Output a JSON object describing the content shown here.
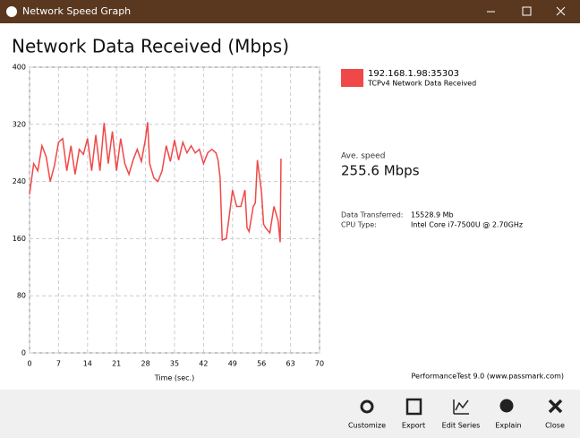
{
  "window": {
    "title": "Network Speed Graph"
  },
  "chart_data": {
    "type": "line",
    "title": "Network Data Received (Mbps)",
    "x_label": "Time (sec.)",
    "x": [
      0,
      1,
      2,
      3,
      4,
      5,
      6,
      7,
      8,
      9,
      10,
      11,
      12,
      13,
      14,
      15,
      16,
      17,
      18,
      19,
      20,
      21,
      22,
      23,
      24,
      25,
      26,
      27,
      28,
      28.5,
      29,
      30,
      31,
      32,
      33,
      34,
      35,
      36,
      37,
      38,
      39,
      40,
      41,
      42,
      43,
      44,
      45,
      45.5,
      46,
      46.5,
      47.5,
      48.5,
      49,
      50,
      51,
      52,
      52.5,
      53,
      54,
      54.5,
      55,
      56,
      56.5,
      57,
      58,
      59,
      60,
      60.5,
      60.7
    ],
    "series": [
      {
        "name": "192.168.1.98:35303",
        "color": "#f04848",
        "values": [
          222,
          265,
          255,
          290,
          275,
          240,
          262,
          295,
          300,
          255,
          290,
          250,
          285,
          278,
          300,
          255,
          305,
          255,
          322,
          265,
          310,
          255,
          300,
          265,
          250,
          270,
          285,
          268,
          300,
          323,
          265,
          245,
          240,
          255,
          290,
          268,
          298,
          270,
          295,
          280,
          290,
          280,
          285,
          265,
          280,
          285,
          280,
          270,
          245,
          158,
          160,
          205,
          228,
          205,
          205,
          228,
          175,
          170,
          205,
          210,
          270,
          225,
          180,
          175,
          168,
          205,
          185,
          155,
          272
        ]
      }
    ],
    "series_subtitle": "TCPv4 Network Data Received",
    "xlim": [
      0,
      70
    ],
    "xticks": [
      0,
      7,
      14,
      21,
      28,
      35,
      42,
      49,
      56,
      63,
      70
    ],
    "ylim": [
      0,
      400
    ],
    "yticks": [
      0,
      80,
      160,
      240,
      320,
      400
    ],
    "grid": true
  },
  "stats": {
    "avg_label": "Ave. speed",
    "avg_value": "255.6 Mbps",
    "rows": [
      [
        "Data Transferred:",
        "15528.9 Mb"
      ],
      [
        "CPU Type:",
        "Intel Core i7-7500U @ 2.70GHz"
      ]
    ],
    "credit": "PerformanceTest 9.0 (www.passmark.com)"
  },
  "toolbar": [
    "Customize",
    "Export",
    "Edit Series",
    "Explain",
    "Close"
  ]
}
